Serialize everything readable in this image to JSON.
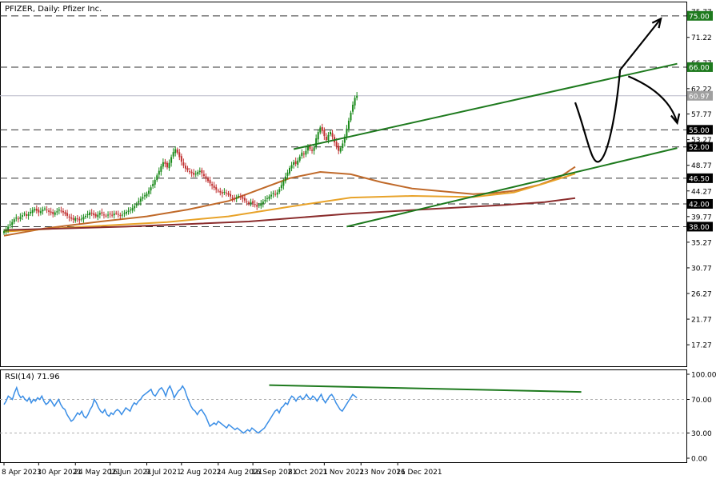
{
  "chart_data": {
    "type": "candlestick",
    "title": "PFIZER, Daily:  Pfizer Inc.",
    "price_axis": {
      "ticks": [
        "75.77",
        "71.22",
        "66.77",
        "62.22",
        "57.77",
        "53.27",
        "48.77",
        "44.27",
        "39.77",
        "35.27",
        "30.77",
        "26.27",
        "21.77",
        "17.27"
      ],
      "tick_values": [
        75.77,
        71.22,
        66.77,
        62.22,
        57.77,
        53.27,
        48.77,
        44.27,
        39.77,
        35.27,
        30.77,
        26.27,
        21.77,
        17.27
      ],
      "ylim": [
        13.5,
        77.5
      ]
    },
    "horizontal_levels": [
      {
        "value": 75.0,
        "label": "75.00",
        "color": "#1e7a1e"
      },
      {
        "value": 66.0,
        "label": "66.00",
        "color": "#1e7a1e"
      },
      {
        "value": 55.0,
        "label": "55.00",
        "color": "#000000"
      },
      {
        "value": 52.0,
        "label": "52.00",
        "color": "#000000"
      },
      {
        "value": 46.5,
        "label": "46.50",
        "color": "#000000"
      },
      {
        "value": 42.0,
        "label": "42.00",
        "color": "#000000"
      },
      {
        "value": 38.0,
        "label": "38.00",
        "color": "#000000"
      }
    ],
    "current_price": {
      "value": 60.97,
      "label": "60.97",
      "color": "#a0a0a0"
    },
    "x_axis_labels": [
      "8 Apr 2021",
      "30 Apr 2021",
      "24 May 2021",
      "16 Jun 2021",
      "9 Jul 2021",
      "2 Aug 2021",
      "24 Aug 2021",
      "16 Sep 2021",
      "8 Oct 2021",
      "1 Nov 2021",
      "23 Nov 2021",
      "16 Dec 2021"
    ],
    "candle_closes": [
      37.2,
      37.5,
      38.0,
      38.4,
      38.8,
      39.3,
      39.6,
      39.4,
      39.7,
      40.0,
      40.3,
      39.9,
      40.2,
      40.6,
      40.9,
      41.1,
      40.8,
      40.5,
      40.7,
      41.0,
      41.2,
      40.9,
      40.6,
      40.4,
      40.2,
      40.5,
      40.7,
      41.0,
      40.8,
      40.5,
      40.2,
      39.9,
      39.6,
      39.4,
      39.2,
      39.5,
      39.3,
      39.1,
      39.4,
      39.7,
      39.9,
      40.2,
      40.5,
      40.3,
      40.0,
      39.8,
      40.1,
      40.4,
      40.3,
      40.0,
      39.9,
      40.1,
      40.2,
      40.0,
      40.3,
      40.4,
      40.1,
      39.9,
      40.1,
      40.4,
      40.6,
      40.8,
      41.0,
      41.3,
      41.6,
      42.0,
      42.5,
      42.9,
      43.2,
      43.5,
      43.8,
      44.3,
      44.9,
      45.5,
      46.2,
      47.0,
      47.8,
      48.6,
      49.3,
      49.0,
      48.4,
      49.2,
      50.2,
      51.1,
      51.6,
      51.0,
      50.2,
      49.4,
      48.7,
      48.2,
      47.9,
      47.7,
      47.4,
      47.1,
      47.3,
      47.6,
      47.8,
      47.4,
      46.9,
      46.4,
      46.0,
      45.6,
      45.2,
      44.8,
      44.5,
      44.3,
      44.0,
      43.8,
      44.1,
      43.9,
      43.6,
      43.3,
      43.0,
      42.8,
      43.1,
      43.4,
      43.2,
      42.9,
      42.6,
      42.3,
      42.0,
      42.3,
      42.1,
      41.8,
      41.5,
      41.8,
      42.1,
      42.4,
      42.7,
      43.0,
      43.3,
      43.6,
      43.9,
      43.7,
      44.0,
      44.6,
      45.3,
      46.0,
      46.8,
      47.5,
      48.3,
      48.8,
      49.3,
      49.0,
      49.6,
      50.3,
      51.0,
      50.7,
      51.3,
      52.0,
      51.6,
      51.3,
      51.9,
      53.5,
      54.6,
      55.4,
      54.8,
      53.9,
      53.2,
      54.1,
      54.6,
      53.8,
      52.8,
      52.0,
      51.3,
      51.8,
      52.6,
      53.8,
      55.2,
      56.6,
      58.0,
      59.4,
      60.6,
      60.97
    ],
    "moving_averages": [
      {
        "color": "#c06a2a",
        "points": [
          [
            0,
            36.4
          ],
          [
            20,
            37.7
          ],
          [
            45,
            38.8
          ],
          [
            70,
            39.8
          ],
          [
            90,
            41.0
          ],
          [
            110,
            42.5
          ],
          [
            125,
            44.5
          ],
          [
            140,
            46.5
          ],
          [
            155,
            47.6
          ],
          [
            170,
            47.2
          ],
          [
            185,
            45.8
          ],
          [
            200,
            44.7
          ],
          [
            215,
            44.2
          ],
          [
            230,
            43.7
          ],
          [
            240,
            43.9
          ],
          [
            250,
            44.3
          ],
          [
            262,
            45.3
          ],
          [
            272,
            46.6
          ],
          [
            280,
            48.5
          ]
        ]
      },
      {
        "color": "#e8a32a",
        "points": [
          [
            0,
            37.1
          ],
          [
            40,
            38.0
          ],
          [
            80,
            38.8
          ],
          [
            110,
            39.8
          ],
          [
            140,
            41.5
          ],
          [
            170,
            43.1
          ],
          [
            200,
            43.4
          ],
          [
            230,
            43.2
          ],
          [
            250,
            44.0
          ],
          [
            265,
            45.6
          ],
          [
            280,
            47.3
          ]
        ]
      },
      {
        "color": "#8b2d2d",
        "points": [
          [
            0,
            37.4
          ],
          [
            60,
            38.0
          ],
          [
            120,
            38.9
          ],
          [
            170,
            40.3
          ],
          [
            210,
            41.1
          ],
          [
            245,
            41.8
          ],
          [
            265,
            42.3
          ],
          [
            280,
            43.0
          ]
        ]
      }
    ],
    "trendlines": [
      {
        "color": "#1e7a1e",
        "points": [
          [
            142,
            51.6
          ],
          [
            330,
            66.6
          ]
        ]
      },
      {
        "color": "#1e7a1e",
        "points": [
          [
            168,
            38.0
          ],
          [
            330,
            51.8
          ]
        ]
      }
    ],
    "projection_arrows": [
      {
        "color": "#000000",
        "points": [
          [
            280,
            59.8
          ],
          [
            292,
            49.5
          ],
          [
            302,
            65.5
          ],
          [
            322,
            74.5
          ]
        ]
      },
      {
        "color": "#000000",
        "points": [
          [
            306,
            64.4
          ],
          [
            330,
            56.2
          ]
        ]
      }
    ],
    "rsi": {
      "label": "RSI(14) 71.96",
      "ticks": [
        "100.00",
        "70.00",
        "30.00",
        "0.00"
      ],
      "tick_values": [
        100,
        70,
        30,
        0
      ],
      "levels": [
        70,
        30
      ],
      "values": [
        64,
        68,
        74,
        72,
        70,
        78,
        84,
        76,
        72,
        74,
        70,
        68,
        72,
        66,
        70,
        68,
        72,
        70,
        74,
        68,
        64,
        66,
        70,
        66,
        62,
        66,
        70,
        64,
        60,
        58,
        52,
        48,
        44,
        46,
        50,
        54,
        52,
        56,
        50,
        48,
        52,
        58,
        62,
        70,
        66,
        60,
        56,
        54,
        58,
        52,
        50,
        54,
        52,
        56,
        58,
        56,
        52,
        56,
        60,
        58,
        56,
        62,
        66,
        64,
        68,
        70,
        74,
        76,
        78,
        80,
        82,
        76,
        74,
        78,
        82,
        84,
        80,
        74,
        82,
        86,
        80,
        72,
        76,
        80,
        82,
        86,
        82,
        74,
        68,
        62,
        58,
        56,
        52,
        56,
        58,
        54,
        50,
        44,
        38,
        40,
        42,
        40,
        44,
        42,
        40,
        38,
        36,
        40,
        38,
        36,
        34,
        36,
        34,
        32,
        30,
        32,
        34,
        32,
        36,
        34,
        32,
        30,
        32,
        34,
        36,
        40,
        44,
        48,
        52,
        56,
        58,
        54,
        60,
        62,
        66,
        64,
        70,
        74,
        72,
        68,
        72,
        74,
        70,
        72,
        76,
        72,
        70,
        74,
        72,
        68,
        72,
        76,
        70,
        66,
        70,
        74,
        76,
        72,
        66,
        62,
        58,
        56,
        60,
        64,
        68,
        72,
        76,
        74,
        71.96
      ],
      "divergence_line": {
        "color": "#1e7a1e",
        "points": [
          [
            130,
            87
          ],
          [
            283,
            79
          ]
        ]
      }
    },
    "grid": false,
    "legend": "none"
  }
}
